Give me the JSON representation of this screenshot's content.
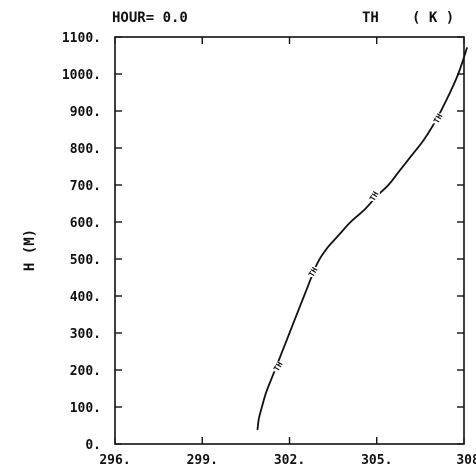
{
  "chart_data": {
    "type": "line",
    "header_left": "HOUR= 0.0",
    "header_var": "TH",
    "header_unit": "( K )",
    "xlabel": "",
    "ylabel": "H (M)",
    "xlim": [
      296,
      308
    ],
    "ylim": [
      0,
      1100
    ],
    "x_ticks": [
      296,
      299,
      302,
      305,
      308
    ],
    "x_tick_labels": [
      "296.",
      "299.",
      "302.",
      "305.",
      "308."
    ],
    "y_ticks": [
      0,
      100,
      200,
      300,
      400,
      500,
      600,
      700,
      800,
      900,
      1000,
      1100
    ],
    "y_tick_labels": [
      "0.",
      "100.",
      "200.",
      "300.",
      "400.",
      "500.",
      "600.",
      "700.",
      "800.",
      "900.",
      "1000.",
      "1100."
    ],
    "grid": false,
    "series": [
      {
        "line_label": "TH",
        "label_positions": [
          {
            "x": 301.6,
            "y": 210
          },
          {
            "x": 302.8,
            "y": 465
          },
          {
            "x": 304.9,
            "y": 670
          },
          {
            "x": 307.1,
            "y": 880
          }
        ],
        "x": [
          300.9,
          300.95,
          301.05,
          301.2,
          301.4,
          301.6,
          301.8,
          302.0,
          302.2,
          302.4,
          302.6,
          302.8,
          303.0,
          303.3,
          303.7,
          304.1,
          304.6,
          305.0,
          305.4,
          305.8,
          306.2,
          306.6,
          307.0,
          307.4,
          307.8,
          308.1
        ],
        "y": [
          40,
          70,
          100,
          140,
          180,
          220,
          260,
          300,
          340,
          380,
          420,
          460,
          495,
          530,
          565,
          600,
          635,
          670,
          700,
          740,
          780,
          820,
          870,
          930,
          1000,
          1070
        ]
      }
    ]
  }
}
